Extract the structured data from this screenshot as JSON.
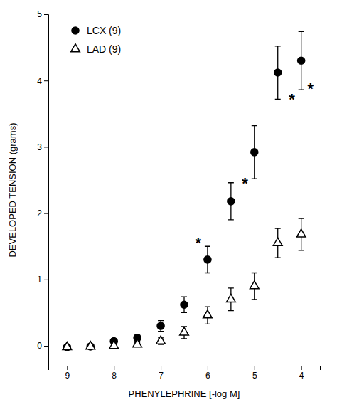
{
  "chart_data": {
    "type": "scatter",
    "xlabel": "PHENYLEPHRINE [-log M]",
    "ylabel": "DEVELOPED TENSION (grams)",
    "xlim": [
      9.4,
      3.6
    ],
    "ylim": [
      -0.3,
      5.0
    ],
    "xticks": [
      9,
      8,
      7,
      6,
      5,
      4
    ],
    "yticks": [
      0,
      1,
      2,
      3,
      4,
      5
    ],
    "legend": "upper left",
    "series": [
      {
        "name": "LCX (9)",
        "color": "#000000",
        "marker": "circle",
        "x": [
          9,
          8.5,
          8,
          7.5,
          7,
          6.5,
          6,
          5.5,
          5,
          4.5,
          4
        ],
        "values": [
          -0.02,
          -0.01,
          0.07,
          0.12,
          0.3,
          0.62,
          1.3,
          2.18,
          2.92,
          4.12,
          4.3
        ],
        "errors": [
          0.02,
          0.02,
          0.04,
          0.05,
          0.08,
          0.12,
          0.2,
          0.28,
          0.4,
          0.4,
          0.44
        ]
      },
      {
        "name": "LAD (9)",
        "color": "#000000",
        "marker": "triangle-open",
        "x": [
          9,
          8.5,
          8,
          7.5,
          7,
          6.5,
          6,
          5.5,
          5,
          4.5,
          4
        ],
        "values": [
          -0.02,
          -0.01,
          0.0,
          0.02,
          0.07,
          0.2,
          0.46,
          0.7,
          0.9,
          1.55,
          1.68
        ],
        "errors": [
          0.02,
          0.02,
          0.02,
          0.03,
          0.05,
          0.09,
          0.13,
          0.17,
          0.2,
          0.22,
          0.24
        ]
      }
    ],
    "annotations": [
      {
        "x": 6.2,
        "y": 1.55,
        "text": "*"
      },
      {
        "x": 5.2,
        "y": 2.45,
        "text": "*"
      },
      {
        "x": 4.2,
        "y": 3.72,
        "text": "*"
      },
      {
        "x": 3.8,
        "y": 3.88,
        "text": "*"
      }
    ]
  }
}
